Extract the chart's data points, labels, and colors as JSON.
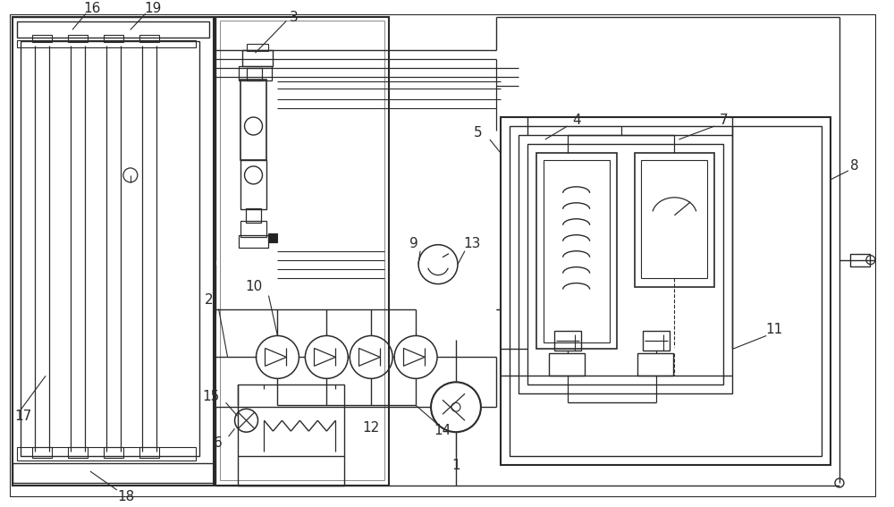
{
  "bg_color": "#ffffff",
  "line_color": "#2a2a2a",
  "figsize": [
    10.0,
    5.67
  ],
  "dpi": 100
}
